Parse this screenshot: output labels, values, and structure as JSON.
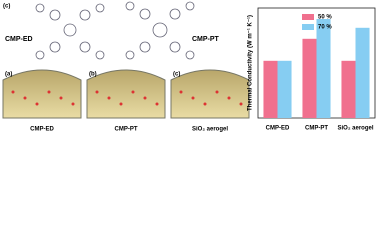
{
  "panels": {
    "top_label": "(c)",
    "molecule_left": "CMP-ED",
    "molecule_right": "CMP-PT",
    "items": [
      {
        "tag": "(a)",
        "caption": "CMP-ED"
      },
      {
        "tag": "(b)",
        "caption": "CMP-PT"
      },
      {
        "tag": "(c)",
        "caption": "SiO₂ aerogel"
      }
    ]
  },
  "chart_data": {
    "type": "bar",
    "y_label": "Thermal Conductivity (W m⁻¹ K⁻¹)",
    "categories": [
      "CMP-ED",
      "CMP-PT",
      "SiO₂ aerogel"
    ],
    "series": [
      {
        "name": "50 %",
        "color": "#f0708e",
        "values": [
          0.026,
          0.036,
          0.026
        ]
      },
      {
        "name": "70 %",
        "color": "#86cdf2",
        "values": [
          0.026,
          0.045,
          0.041
        ]
      }
    ],
    "ylim": [
      0,
      0.05
    ],
    "grid": false,
    "legend": "top-left"
  }
}
